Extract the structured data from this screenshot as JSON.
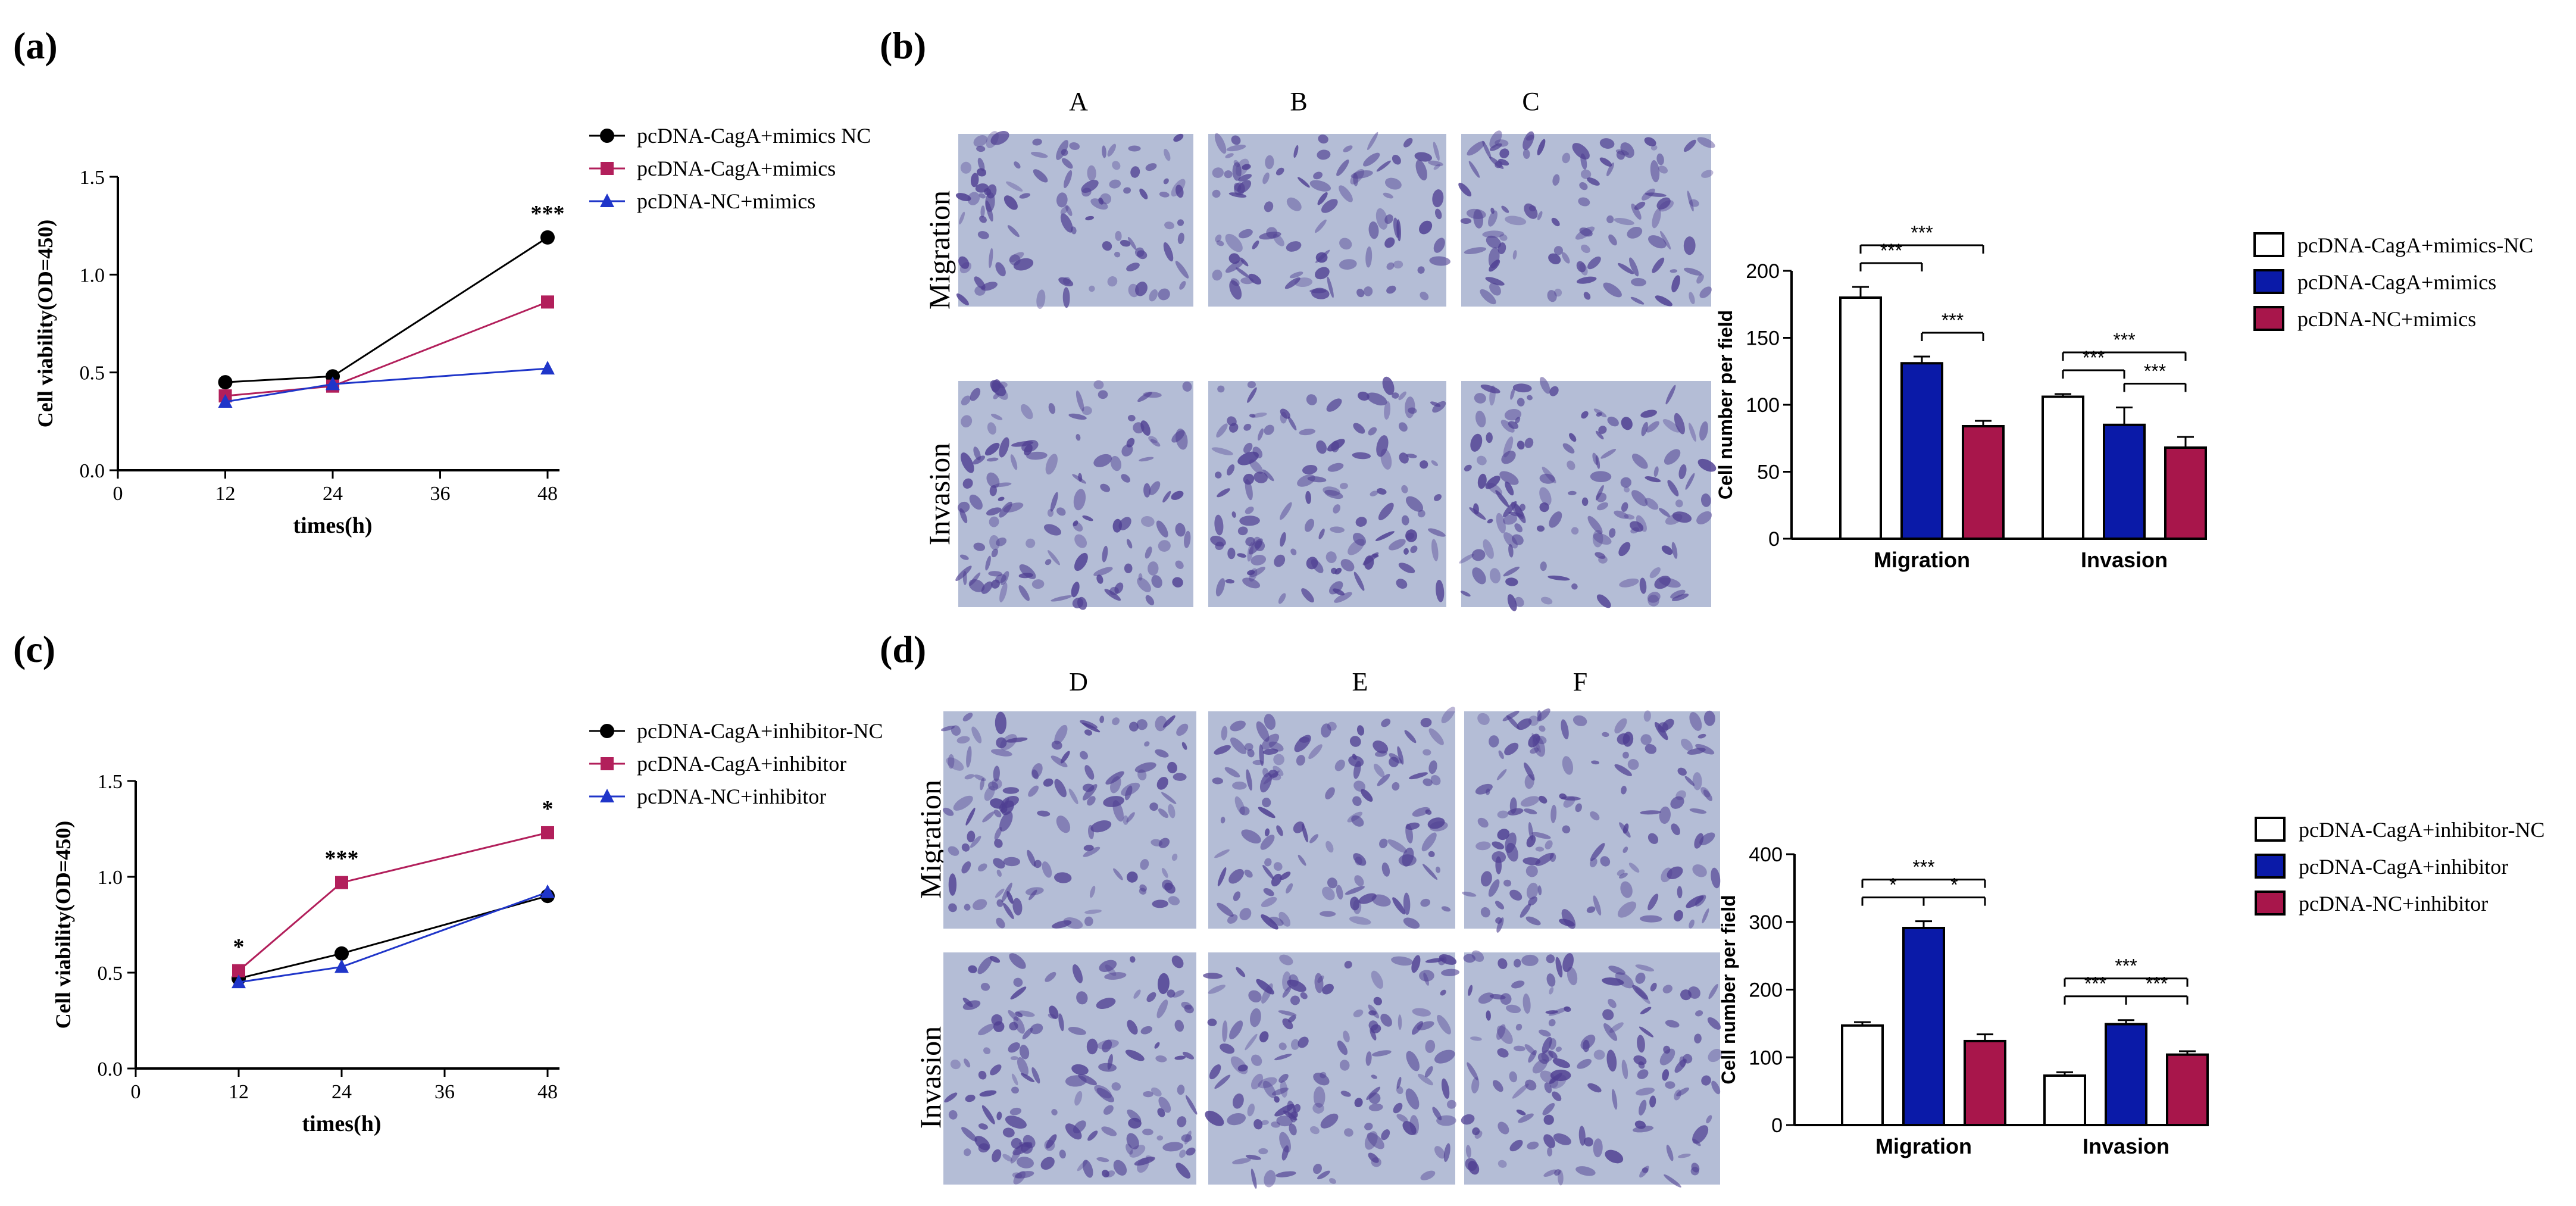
{
  "panels": {
    "a": {
      "label": "(a)"
    },
    "b": {
      "label": "(b)",
      "columns": [
        "A",
        "B",
        "C"
      ],
      "rows": [
        "Migration",
        "Invasion"
      ]
    },
    "c": {
      "label": "(c)"
    },
    "d": {
      "label": "(d)",
      "columns": [
        "D",
        "E",
        "F"
      ],
      "rows": [
        "Migration",
        "Invasion"
      ]
    }
  },
  "colors": {
    "black": "#000000",
    "pink": "#b21f5b",
    "blue": "#1f35c9",
    "navy": "#0a1aa8",
    "crimson": "#a8164b",
    "cell_bg": "#b4bdd6",
    "cell_stain": "#4f3f92"
  },
  "chart_data": [
    {
      "id": "a",
      "type": "line",
      "x": [
        12,
        24,
        48
      ],
      "series": [
        {
          "name": "pcDNA-CagA+mimics NC",
          "values": [
            0.45,
            0.48,
            1.19
          ],
          "color": "#000000",
          "marker": "circle"
        },
        {
          "name": "pcDNA-CagA+mimics",
          "values": [
            0.38,
            0.43,
            0.86
          ],
          "color": "#b21f5b",
          "marker": "square"
        },
        {
          "name": "pcDNA-NC+mimics",
          "values": [
            0.35,
            0.44,
            0.52
          ],
          "color": "#1f35c9",
          "marker": "triangle"
        }
      ],
      "xlabel": "times(h)",
      "ylabel": "Cell viability(OD=450)",
      "xlim": [
        0,
        48
      ],
      "ylim": [
        0,
        1.5
      ],
      "xticks": [
        "0",
        "12",
        "24",
        "36",
        "48"
      ],
      "yticks": [
        "0.0",
        "0.5",
        "1.0",
        "1.5"
      ],
      "annotations": [
        {
          "x": 48,
          "y": 1.19,
          "text": "***"
        }
      ],
      "legend": "top-right"
    },
    {
      "id": "b",
      "type": "bar",
      "categories": [
        "Migration",
        "Invasion"
      ],
      "series": [
        {
          "name": "pcDNA-CagA+mimics-NC",
          "values": [
            180,
            106
          ],
          "errors": [
            8,
            2
          ],
          "color": "#ffffff"
        },
        {
          "name": "pcDNA-CagA+mimics",
          "values": [
            131,
            85
          ],
          "errors": [
            5,
            13
          ],
          "color": "#0a1aa8"
        },
        {
          "name": "pcDNA-NC+mimics",
          "values": [
            84,
            68
          ],
          "errors": [
            4,
            8
          ],
          "color": "#a8164b"
        }
      ],
      "ylabel": "Cell number per field",
      "ylim": [
        0,
        200
      ],
      "yticks": [
        "0",
        "50",
        "100",
        "150",
        "200"
      ],
      "significance": [
        {
          "category": 0,
          "from": 0,
          "to": 2,
          "text": "***"
        },
        {
          "category": 0,
          "from": 0,
          "to": 1,
          "text": "***"
        },
        {
          "category": 0,
          "from": 1,
          "to": 2,
          "text": "***"
        },
        {
          "category": 1,
          "from": 0,
          "to": 2,
          "text": "***"
        },
        {
          "category": 1,
          "from": 0,
          "to": 1,
          "text": "***"
        },
        {
          "category": 1,
          "from": 1,
          "to": 2,
          "text": "***"
        }
      ],
      "legend": "right"
    },
    {
      "id": "c",
      "type": "line",
      "x": [
        12,
        24,
        48
      ],
      "series": [
        {
          "name": "pcDNA-CagA+inhibitor-NC",
          "values": [
            0.47,
            0.6,
            0.9
          ],
          "color": "#000000",
          "marker": "circle"
        },
        {
          "name": "pcDNA-CagA+inhibitor",
          "values": [
            0.51,
            0.97,
            1.23
          ],
          "color": "#b21f5b",
          "marker": "square"
        },
        {
          "name": "pcDNA-NC+inhibitor",
          "values": [
            0.45,
            0.53,
            0.92
          ],
          "color": "#1f35c9",
          "marker": "triangle"
        }
      ],
      "xlabel": "times(h)",
      "ylabel": "Cell viability(OD=450)",
      "xlim": [
        0,
        48
      ],
      "ylim": [
        0,
        1.5
      ],
      "xticks": [
        "0",
        "12",
        "24",
        "36",
        "48"
      ],
      "yticks": [
        "0.0",
        "0.5",
        "1.0",
        "1.5"
      ],
      "annotations": [
        {
          "x": 12,
          "y": 0.51,
          "text": "*"
        },
        {
          "x": 24,
          "y": 0.97,
          "text": "***"
        },
        {
          "x": 48,
          "y": 1.23,
          "text": "*"
        }
      ],
      "legend": "top-right"
    },
    {
      "id": "d",
      "type": "bar",
      "categories": [
        "Migration",
        "Invasion"
      ],
      "series": [
        {
          "name": "pcDNA-CagA+inhibitor-NC",
          "values": [
            147,
            73
          ],
          "errors": [
            5,
            5
          ],
          "color": "#ffffff"
        },
        {
          "name": "pcDNA-CagA+inhibitor",
          "values": [
            291,
            149
          ],
          "errors": [
            10,
            6
          ],
          "color": "#0a1aa8"
        },
        {
          "name": "pcDNA-NC+inhibitor",
          "values": [
            124,
            104
          ],
          "errors": [
            10,
            5
          ],
          "color": "#a8164b"
        }
      ],
      "ylabel": "Cell number per field",
      "ylim": [
        0,
        400
      ],
      "yticks": [
        "0",
        "100",
        "200",
        "300",
        "400"
      ],
      "significance": [
        {
          "category": 0,
          "from": 0,
          "to": 2,
          "text": "***"
        },
        {
          "category": 0,
          "from": 0,
          "to": 1,
          "text": "*"
        },
        {
          "category": 0,
          "from": 1,
          "to": 2,
          "text": "*"
        },
        {
          "category": 1,
          "from": 0,
          "to": 2,
          "text": "***"
        },
        {
          "category": 1,
          "from": 0,
          "to": 1,
          "text": "***"
        },
        {
          "category": 1,
          "from": 1,
          "to": 2,
          "text": "***"
        }
      ],
      "legend": "right"
    }
  ]
}
